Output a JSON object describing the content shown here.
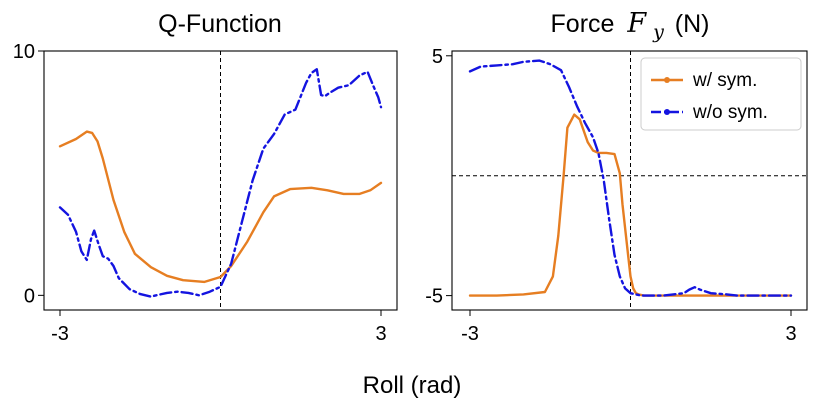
{
  "figure": {
    "xlabel": "Roll (rad)"
  },
  "chart_data": [
    {
      "type": "line",
      "title": "Q-Function",
      "xlim": [
        -3,
        3
      ],
      "ylim": [
        -0.6,
        10
      ],
      "x_ticks": [
        {
          "value": -3,
          "label": "-3"
        },
        {
          "value": 3,
          "label": "3"
        }
      ],
      "y_ticks": [
        {
          "value": 0,
          "label": "0"
        },
        {
          "value": 10,
          "label": "10"
        }
      ],
      "reference_lines": [
        {
          "orientation": "vertical",
          "value": 0
        }
      ],
      "series": [
        {
          "key": "sym",
          "color": "#e67e22",
          "style": "solid",
          "x": [
            -3.0,
            -2.7,
            -2.5,
            -2.4,
            -2.3,
            -2.2,
            -2.0,
            -1.8,
            -1.6,
            -1.3,
            -1.0,
            -0.7,
            -0.3,
            0.0,
            0.2,
            0.5,
            0.8,
            1.0,
            1.3,
            1.7,
            2.0,
            2.3,
            2.6,
            2.8,
            3.0
          ],
          "y": [
            6.1,
            6.4,
            6.7,
            6.65,
            6.3,
            5.6,
            3.9,
            2.6,
            1.7,
            1.15,
            0.8,
            0.62,
            0.55,
            0.75,
            1.2,
            2.2,
            3.4,
            4.05,
            4.35,
            4.4,
            4.3,
            4.15,
            4.15,
            4.3,
            4.6
          ]
        },
        {
          "key": "nosym",
          "color": "#1414e0",
          "style": "dashdot",
          "x": [
            -3.0,
            -2.85,
            -2.7,
            -2.6,
            -2.5,
            -2.42,
            -2.36,
            -2.28,
            -2.2,
            -2.1,
            -2.0,
            -1.9,
            -1.7,
            -1.5,
            -1.3,
            -1.2,
            -1.0,
            -0.8,
            -0.6,
            -0.4,
            -0.2,
            0.0,
            0.2,
            0.4,
            0.6,
            0.8,
            1.0,
            1.2,
            1.4,
            1.6,
            1.7,
            1.8,
            1.88,
            1.95,
            2.05,
            2.2,
            2.4,
            2.6,
            2.75,
            2.85,
            2.95,
            3.0
          ],
          "y": [
            3.6,
            3.3,
            2.6,
            1.8,
            1.45,
            2.3,
            2.65,
            2.1,
            1.6,
            1.5,
            1.2,
            0.7,
            0.25,
            0.05,
            -0.05,
            0.0,
            0.1,
            0.15,
            0.1,
            0.0,
            0.15,
            0.35,
            1.3,
            3.0,
            4.7,
            6.0,
            6.6,
            7.4,
            7.6,
            8.7,
            9.1,
            9.25,
            8.2,
            8.15,
            8.3,
            8.5,
            8.6,
            9.0,
            9.15,
            8.6,
            8.1,
            7.7
          ]
        }
      ]
    },
    {
      "type": "line",
      "title": "Force",
      "title_math": "F_y",
      "title_math_main": "F",
      "title_math_sub": "y",
      "title_unit": "(N)",
      "xlim": [
        -3,
        3
      ],
      "ylim": [
        -5.6,
        5.2
      ],
      "x_ticks": [
        {
          "value": -3,
          "label": "-3"
        },
        {
          "value": 3,
          "label": "3"
        }
      ],
      "y_ticks": [
        {
          "value": -5,
          "label": "-5"
        },
        {
          "value": 5,
          "label": "5"
        }
      ],
      "reference_lines": [
        {
          "orientation": "vertical",
          "value": 0
        },
        {
          "orientation": "horizontal",
          "value": 0
        }
      ],
      "legend": {
        "placement": "top-right",
        "entries": [
          {
            "key": "sym",
            "label": "w/ sym."
          },
          {
            "key": "nosym",
            "label": "w/o sym."
          }
        ]
      },
      "series": [
        {
          "key": "sym",
          "color": "#e67e22",
          "style": "solid",
          "x": [
            -3.0,
            -2.5,
            -2.0,
            -1.6,
            -1.45,
            -1.35,
            -1.25,
            -1.18,
            -1.05,
            -0.95,
            -0.8,
            -0.7,
            -0.6,
            -0.45,
            -0.3,
            -0.2,
            -0.15,
            -0.05,
            0.0,
            0.05,
            0.1,
            0.15,
            0.25,
            0.5,
            1.0,
            1.5,
            2.0,
            2.5,
            3.0
          ],
          "y": [
            -5.0,
            -5.0,
            -4.95,
            -4.85,
            -4.2,
            -2.5,
            0.0,
            2.0,
            2.55,
            2.35,
            1.4,
            1.05,
            0.95,
            0.95,
            0.9,
            0.1,
            -1.2,
            -3.2,
            -4.2,
            -4.7,
            -4.9,
            -4.95,
            -5.0,
            -5.0,
            -5.0,
            -5.0,
            -5.0,
            -5.0,
            -5.0
          ]
        },
        {
          "key": "nosym",
          "color": "#1414e0",
          "style": "dashdot",
          "x": [
            -3.0,
            -2.8,
            -2.5,
            -2.2,
            -2.0,
            -1.7,
            -1.5,
            -1.3,
            -1.15,
            -1.0,
            -0.85,
            -0.7,
            -0.6,
            -0.5,
            -0.4,
            -0.3,
            -0.2,
            -0.1,
            0.0,
            0.1,
            0.2,
            0.4,
            0.6,
            0.8,
            1.0,
            1.1,
            1.2,
            1.3,
            1.5,
            1.8,
            2.0,
            2.5,
            3.0
          ],
          "y": [
            4.35,
            4.55,
            4.6,
            4.65,
            4.75,
            4.8,
            4.65,
            4.4,
            3.7,
            2.9,
            2.2,
            1.6,
            0.95,
            -0.2,
            -1.8,
            -3.3,
            -4.2,
            -4.7,
            -4.9,
            -4.95,
            -5.0,
            -5.0,
            -5.0,
            -4.95,
            -4.9,
            -4.75,
            -4.65,
            -4.75,
            -4.9,
            -4.95,
            -5.0,
            -5.0,
            -5.0
          ]
        }
      ]
    }
  ]
}
